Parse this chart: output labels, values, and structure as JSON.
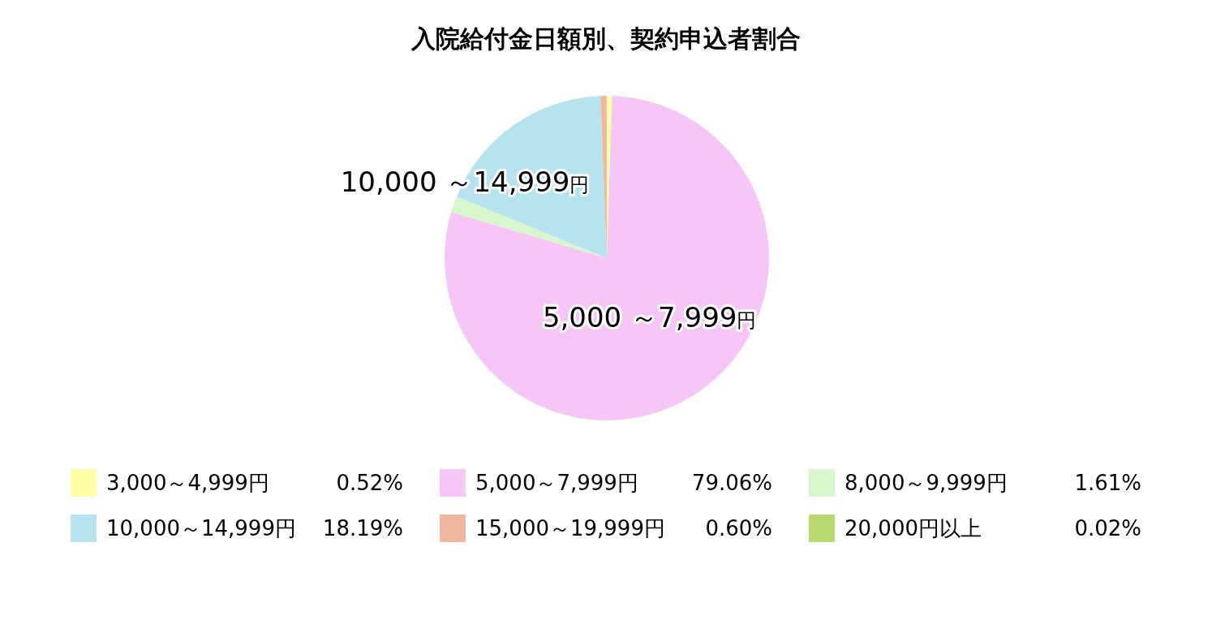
{
  "chart_data": {
    "type": "pie",
    "title": "入院給付金日額別、契約申込者割合",
    "categories": [
      "3,000～4,999円",
      "5,000～7,999円",
      "8,000～9,999円",
      "10,000～14,999円",
      "15,000～19,999円",
      "20,000円以上"
    ],
    "values": [
      0.52,
      79.06,
      1.61,
      18.19,
      0.6,
      0.02
    ],
    "colors": [
      "#ffffa8",
      "#f6c7f6",
      "#d8f6ce",
      "#b6e3ee",
      "#efb7a0",
      "#b7da70"
    ],
    "value_labels": [
      "0.52%",
      "79.06%",
      "1.61%",
      "18.19%",
      "0.60%",
      "0.02%"
    ],
    "legend": "bottom",
    "annotations": [
      {
        "text": "10,000 ～14,999円",
        "x": "10,000～14,999円"
      },
      {
        "text": "5,000 ～7,999円",
        "x": "5,000～7,999円"
      }
    ]
  }
}
